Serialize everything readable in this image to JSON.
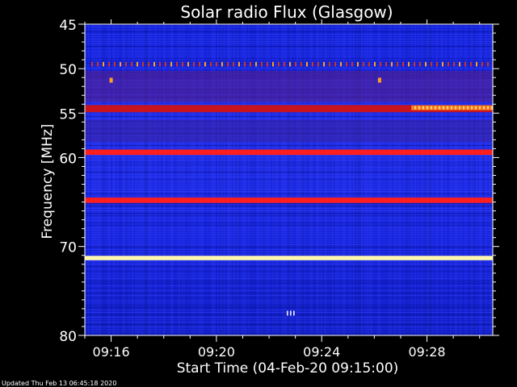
{
  "chart_data": {
    "type": "heatmap",
    "title": "Solar radio Flux (Glasgow)",
    "xlabel": "Start Time (04-Feb-20 09:15:00)",
    "ylabel": "Frequency [MHz]",
    "x_range_minutes": [
      0,
      15.5
    ],
    "ylim": [
      45,
      80
    ],
    "x_ticks": [
      {
        "label": "09:16",
        "minute": 1
      },
      {
        "label": "09:20",
        "minute": 5
      },
      {
        "label": "09:24",
        "minute": 9
      },
      {
        "label": "09:28",
        "minute": 13
      }
    ],
    "y_ticks": [
      45,
      50,
      55,
      60,
      70,
      80
    ],
    "background_colors": [
      "#0c14c8",
      "#1a2ae6",
      "#2430f0",
      "#101aa8"
    ],
    "bands": [
      {
        "freq": 49.5,
        "width": 0.5,
        "color": "#d0321e",
        "style": "dotted"
      },
      {
        "freq": 51.3,
        "width": 0.5,
        "color": "#e08a1c",
        "style": "spot-pair"
      },
      {
        "freq": 52.0,
        "width": 3.5,
        "color": "#5a1e86",
        "style": "haze"
      },
      {
        "freq": 54.5,
        "width": 0.8,
        "color": "#c8141e",
        "style": "solid"
      },
      {
        "freq": 57.0,
        "width": 2.5,
        "color": "#3a1f9a",
        "style": "haze"
      },
      {
        "freq": 59.4,
        "width": 0.6,
        "color": "#ff1e1e",
        "style": "solid"
      },
      {
        "freq": 64.8,
        "width": 0.6,
        "color": "#ff1e1e",
        "style": "solid"
      },
      {
        "freq": 71.3,
        "width": 0.5,
        "color": "#fff8b0",
        "style": "solid"
      }
    ],
    "bright_patch": {
      "freq": 54.4,
      "minute_start": 12.4,
      "minute_end": 15.5,
      "color": "#ff8a1e"
    },
    "spot_marks": [
      {
        "freq": 51.3,
        "minute": 1.0
      },
      {
        "freq": 51.3,
        "minute": 11.2
      }
    ],
    "tick_mark_burst": {
      "freq": 77.5,
      "minute": 7.8
    }
  },
  "footer": {
    "updated": "Updated Thu Feb 13 06:45:18 2020"
  }
}
